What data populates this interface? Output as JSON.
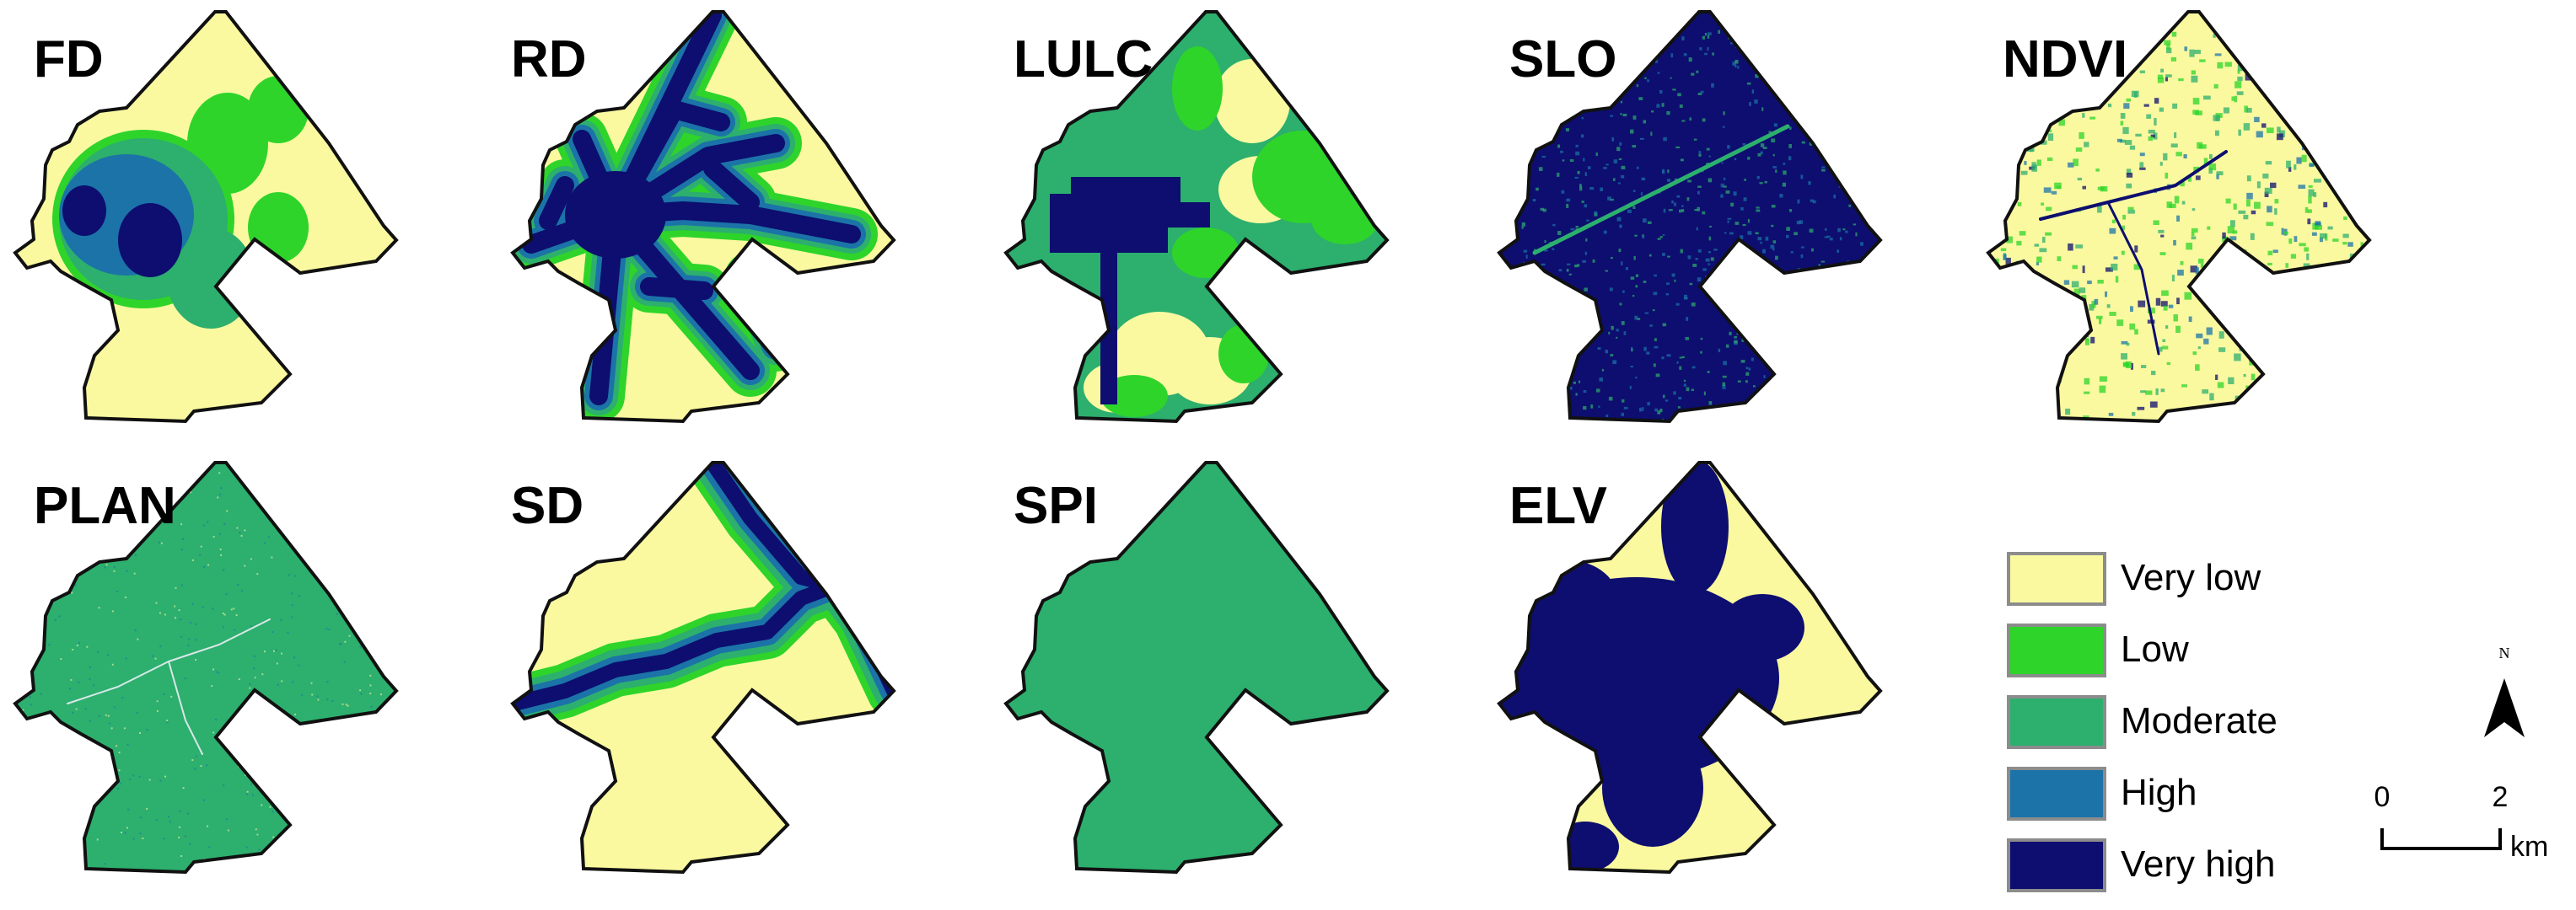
{
  "maps": [
    {
      "id": "fd",
      "label": "FD"
    },
    {
      "id": "rd",
      "label": "RD"
    },
    {
      "id": "lulc",
      "label": "LULC"
    },
    {
      "id": "slo",
      "label": "SLO"
    },
    {
      "id": "ndvi",
      "label": "NDVI"
    },
    {
      "id": "plan",
      "label": "PLAN"
    },
    {
      "id": "sd",
      "label": "SD"
    },
    {
      "id": "spi",
      "label": "SPI"
    },
    {
      "id": "elv",
      "label": "ELV"
    }
  ],
  "legend": {
    "items": [
      {
        "label": "Very low",
        "color": "#FAF9A0"
      },
      {
        "label": "Low",
        "color": "#2ED42A"
      },
      {
        "label": "Moderate",
        "color": "#2DAF6E"
      },
      {
        "label": "High",
        "color": "#1B73A8"
      },
      {
        "label": "Very high",
        "color": "#0D0E6F"
      }
    ]
  },
  "north_arrow": {
    "letter": "N"
  },
  "scale_bar": {
    "start": "0",
    "end": "2",
    "unit": "km"
  },
  "colors": {
    "very_low": "#FAF9A0",
    "low": "#2ED42A",
    "moderate": "#2DAF6E",
    "high": "#1B73A8",
    "very_high": "#0D0E6F",
    "outline": "#111111"
  }
}
